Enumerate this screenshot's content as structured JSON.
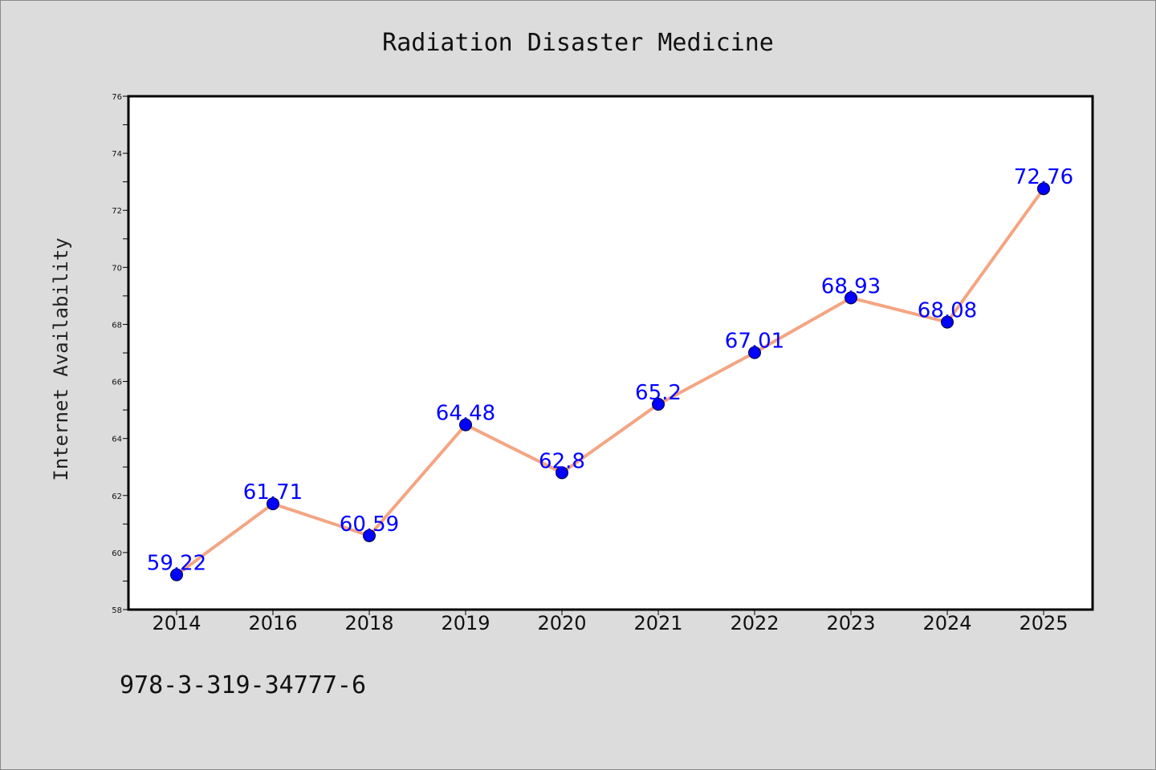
{
  "chart_data": {
    "type": "line",
    "title": "Radiation Disaster Medicine",
    "xlabel": "",
    "ylabel": "Internet Availability",
    "categories": [
      "2014",
      "2016",
      "2018",
      "2019",
      "2020",
      "2021",
      "2022",
      "2023",
      "2024",
      "2025"
    ],
    "series": [
      {
        "values": [
          59.22,
          61.71,
          60.59,
          64.48,
          62.8,
          65.2,
          67.01,
          68.93,
          68.08,
          72.76
        ],
        "data_labels": [
          "59.22",
          "61.71",
          "60.59",
          "64.48",
          "62.8",
          "65.2",
          "67.01",
          "68.93",
          "68.08",
          "72.76"
        ],
        "line_color": "#f4a582",
        "marker_color": "#0000ff",
        "label_color": "#0000ff"
      }
    ],
    "ylim": [
      58,
      76
    ],
    "yticks": [
      "58",
      "60",
      "62",
      "64",
      "66",
      "68",
      "70",
      "72",
      "74",
      "76"
    ],
    "grid": false,
    "legend": "none"
  },
  "footer": {
    "isbn": "978-3-319-34777-6"
  },
  "colors": {
    "background": "#dcdcdc",
    "plot_background": "#ffffff",
    "axis": "#000000"
  }
}
